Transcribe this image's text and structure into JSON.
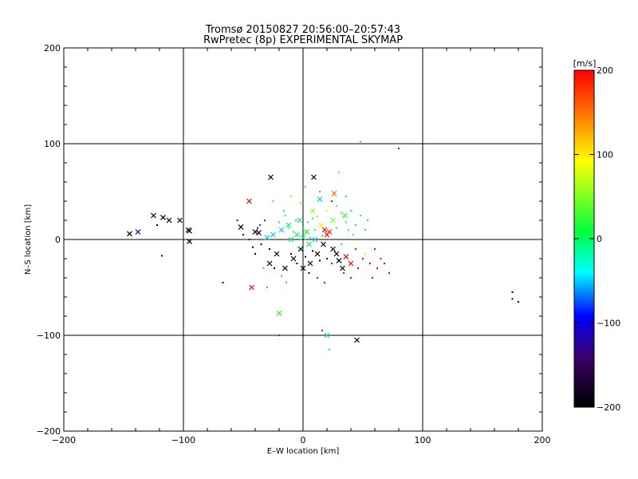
{
  "chart_data": {
    "type": "scatter",
    "title": "Tromsø 20150827 20:56:00–20:57:43",
    "subtitle": "RwPretec (8p) EXPERIMENTAL SKYMAP",
    "xlabel": "E–W location [km]",
    "ylabel": "N–S location [km]",
    "xlim": [
      -200,
      200
    ],
    "ylim": [
      -200,
      200
    ],
    "xticks": [
      -200,
      -100,
      0,
      100,
      200
    ],
    "yticks": [
      -200,
      -100,
      0,
      100,
      200
    ],
    "xtick_labels": [
      "−200",
      "−100",
      "0",
      "100",
      "200"
    ],
    "ytick_labels": [
      "−200",
      "−100",
      "0",
      "100",
      "200"
    ],
    "grid": true,
    "colorbar": {
      "label": "[m/s]",
      "range": [
        -200,
        200
      ],
      "ticks": [
        200,
        100,
        0,
        -100,
        -200
      ],
      "tick_labels": [
        "200",
        "100",
        "0",
        "−100",
        "−200"
      ],
      "colors": [
        "#000000",
        "#3b006b",
        "#0000ff",
        "#00ffff",
        "#00ff40",
        "#ffff00",
        "#ff8000",
        "#ff0000"
      ]
    },
    "series": [
      {
        "marker": "x",
        "points": [
          [
            -145,
            6,
            -200
          ],
          [
            -138,
            8,
            -100
          ],
          [
            -125,
            25,
            -200
          ],
          [
            -117,
            23,
            -200
          ],
          [
            -112,
            20,
            -200
          ],
          [
            -103,
            20,
            -200
          ],
          [
            -96,
            10,
            -200
          ],
          [
            -95,
            9,
            -200
          ],
          [
            -95,
            -2,
            -200
          ],
          [
            -52,
            13,
            -200
          ],
          [
            -45,
            40,
            200
          ],
          [
            -43,
            -50,
            200
          ],
          [
            -40,
            8,
            -200
          ],
          [
            -37,
            7,
            -200
          ],
          [
            -27,
            65,
            -200
          ],
          [
            -20,
            -77,
            20
          ],
          [
            -30,
            2,
            -50
          ],
          [
            -25,
            5,
            -50
          ],
          [
            -18,
            10,
            -50
          ],
          [
            -10,
            0,
            0
          ],
          [
            -5,
            5,
            0
          ],
          [
            0,
            2,
            -10
          ],
          [
            3,
            8,
            10
          ],
          [
            5,
            -5,
            0
          ],
          [
            9,
            65,
            -200
          ],
          [
            -8,
            -20,
            -200
          ],
          [
            -2,
            -10,
            -200
          ],
          [
            6,
            -25,
            -200
          ],
          [
            12,
            -15,
            -200
          ],
          [
            17,
            -5,
            -200
          ],
          [
            20,
            5,
            200
          ],
          [
            22,
            8,
            180
          ],
          [
            18,
            10,
            200
          ],
          [
            15,
            15,
            100
          ],
          [
            25,
            20,
            50
          ],
          [
            28,
            -15,
            -200
          ],
          [
            30,
            -22,
            -200
          ],
          [
            33,
            -30,
            -200
          ],
          [
            36,
            -18,
            200
          ],
          [
            40,
            -25,
            200
          ],
          [
            26,
            48,
            150
          ],
          [
            14,
            42,
            -50
          ],
          [
            8,
            30,
            60
          ],
          [
            20,
            -100,
            0
          ],
          [
            45,
            -105,
            -200
          ],
          [
            -15,
            -30,
            -200
          ],
          [
            -22,
            -15,
            -200
          ],
          [
            -28,
            -25,
            -200
          ],
          [
            -3,
            20,
            0
          ],
          [
            10,
            0,
            -50
          ],
          [
            25,
            -10,
            -200
          ],
          [
            35,
            25,
            20
          ],
          [
            0,
            -30,
            -200
          ],
          [
            -12,
            15,
            0
          ]
        ]
      },
      {
        "marker": "dot",
        "points": [
          [
            -122,
            15,
            -200
          ],
          [
            -118,
            -17,
            -200
          ],
          [
            -67,
            -45,
            -200
          ],
          [
            -55,
            20,
            -100
          ],
          [
            -38,
            12,
            -100
          ],
          [
            -33,
            -30,
            150
          ],
          [
            -30,
            -50,
            150
          ],
          [
            -25,
            40,
            0
          ],
          [
            -20,
            -100,
            200
          ],
          [
            -16,
            30,
            0
          ],
          [
            -14,
            -45,
            0
          ],
          [
            -10,
            45,
            50
          ],
          [
            -6,
            20,
            0
          ],
          [
            -2,
            38,
            30
          ],
          [
            2,
            55,
            20
          ],
          [
            5,
            -35,
            -200
          ],
          [
            8,
            22,
            0
          ],
          [
            12,
            -40,
            200
          ],
          [
            14,
            50,
            150
          ],
          [
            16,
            -95,
            200
          ],
          [
            18,
            -45,
            200
          ],
          [
            20,
            30,
            100
          ],
          [
            22,
            -115,
            20
          ],
          [
            24,
            40,
            200
          ],
          [
            26,
            -10,
            0
          ],
          [
            28,
            35,
            30
          ],
          [
            30,
            70,
            30
          ],
          [
            32,
            -5,
            0
          ],
          [
            34,
            -35,
            200
          ],
          [
            36,
            18,
            0
          ],
          [
            38,
            10,
            20
          ],
          [
            40,
            -40,
            200
          ],
          [
            42,
            5,
            30
          ],
          [
            44,
            -10,
            200
          ],
          [
            46,
            -30,
            200
          ],
          [
            48,
            102,
            0
          ],
          [
            50,
            -20,
            200
          ],
          [
            52,
            -15,
            100
          ],
          [
            54,
            20,
            0
          ],
          [
            56,
            -25,
            200
          ],
          [
            58,
            -40,
            200
          ],
          [
            60,
            -10,
            200
          ],
          [
            62,
            -30,
            200
          ],
          [
            65,
            -20,
            200
          ],
          [
            68,
            -25,
            200
          ],
          [
            72,
            -35,
            200
          ],
          [
            80,
            95,
            200
          ],
          [
            175,
            -55,
            -200
          ],
          [
            175,
            -62,
            -200
          ],
          [
            180,
            -65,
            -200
          ],
          [
            -40,
            -15,
            -200
          ],
          [
            -35,
            -5,
            -200
          ],
          [
            -28,
            -10,
            -200
          ],
          [
            -24,
            -30,
            -200
          ],
          [
            -18,
            -38,
            150
          ],
          [
            -12,
            12,
            -30
          ],
          [
            -8,
            8,
            -20
          ],
          [
            -4,
            -8,
            0
          ],
          [
            0,
            12,
            10
          ],
          [
            4,
            18,
            0
          ],
          [
            6,
            2,
            0
          ],
          [
            10,
            10,
            20
          ],
          [
            12,
            24,
            50
          ],
          [
            16,
            4,
            0
          ],
          [
            20,
            -20,
            -200
          ],
          [
            24,
            -25,
            200
          ],
          [
            28,
            12,
            0
          ],
          [
            32,
            28,
            20
          ],
          [
            36,
            45,
            0
          ],
          [
            40,
            30,
            0
          ],
          [
            44,
            15,
            0
          ],
          [
            48,
            25,
            30
          ],
          [
            52,
            10,
            0
          ],
          [
            -50,
            5,
            -100
          ],
          [
            -45,
            0,
            -100
          ],
          [
            -42,
            -8,
            -200
          ],
          [
            -36,
            15,
            -80
          ],
          [
            -32,
            20,
            -80
          ],
          [
            -20,
            18,
            0
          ],
          [
            -15,
            25,
            -20
          ],
          [
            -10,
            -15,
            -200
          ],
          [
            -5,
            -25,
            -200
          ],
          [
            2,
            -18,
            -200
          ],
          [
            8,
            -12,
            -200
          ],
          [
            14,
            -22,
            -200
          ]
        ]
      }
    ]
  }
}
